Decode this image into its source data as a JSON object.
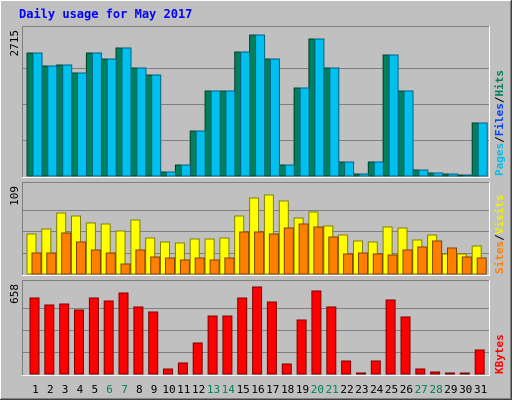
{
  "chart_data": [
    {
      "type": "bar",
      "title": "Daily usage for May 2017",
      "y_tick_label": "2715",
      "ylim": [
        0,
        2715
      ],
      "legend": [
        {
          "label": "Pages",
          "color": "#00c0f0"
        },
        {
          "label": "Files",
          "color": "#0040ff"
        },
        {
          "label": "Hits",
          "color": "#00805c"
        }
      ],
      "legend_separator": "/",
      "categories": [
        "1",
        "2",
        "3",
        "4",
        "5",
        "6",
        "7",
        "8",
        "9",
        "10",
        "11",
        "12",
        "13",
        "14",
        "15",
        "16",
        "17",
        "18",
        "19",
        "20",
        "21",
        "22",
        "23",
        "24",
        "25",
        "26",
        "27",
        "28",
        "29",
        "30",
        "31"
      ],
      "series": [
        {
          "name": "Hits",
          "color": "#00805c",
          "values": [
            2320,
            2070,
            2090,
            1940,
            2320,
            2200,
            2420,
            2040,
            1900,
            80,
            210,
            850,
            1600,
            1600,
            2330,
            2665,
            2200,
            200,
            1660,
            2580,
            2040,
            270,
            30,
            270,
            2280,
            1600,
            120,
            60,
            40,
            10,
            1000
          ]
        },
        {
          "name": "Pages",
          "color": "#00c0f0",
          "values": [
            2320,
            2070,
            2090,
            1940,
            2320,
            2200,
            2420,
            2040,
            1900,
            80,
            210,
            850,
            1600,
            1600,
            2330,
            2665,
            2200,
            200,
            1660,
            2580,
            2040,
            270,
            30,
            270,
            2280,
            1600,
            120,
            60,
            40,
            10,
            1000
          ]
        }
      ]
    },
    {
      "type": "bar",
      "y_tick_label": "109",
      "ylim": [
        0,
        109
      ],
      "legend": [
        {
          "label": "Sites",
          "color": "#ff8000"
        },
        {
          "label": "Visits",
          "color": "#f0f000"
        }
      ],
      "legend_separator": "/",
      "categories": [
        "1",
        "2",
        "3",
        "4",
        "5",
        "6",
        "7",
        "8",
        "9",
        "10",
        "11",
        "12",
        "13",
        "14",
        "15",
        "16",
        "17",
        "18",
        "19",
        "20",
        "21",
        "22",
        "23",
        "24",
        "25",
        "26",
        "27",
        "28",
        "29",
        "30",
        "31"
      ],
      "series": [
        {
          "name": "Visits",
          "color": "#ffff00",
          "values": [
            51,
            57,
            77,
            73,
            65,
            63,
            54,
            69,
            45,
            40,
            39,
            44,
            44,
            45,
            74,
            96,
            100,
            93,
            71,
            78,
            61,
            50,
            42,
            41,
            60,
            58,
            43,
            50,
            25,
            25,
            35
          ]
        },
        {
          "name": "Sites",
          "color": "#ff8000",
          "values": [
            26,
            26,
            52,
            41,
            30,
            27,
            13,
            31,
            21,
            20,
            18,
            20,
            18,
            20,
            53,
            53,
            51,
            58,
            64,
            60,
            47,
            25,
            26,
            25,
            24,
            30,
            34,
            42,
            33,
            21,
            20
          ]
        }
      ]
    },
    {
      "type": "bar",
      "y_tick_label": "658",
      "ylim": [
        0,
        658
      ],
      "legend": [
        {
          "label": "KBytes",
          "color": "#ff0000"
        }
      ],
      "categories": [
        "1",
        "2",
        "3",
        "4",
        "5",
        "6",
        "7",
        "8",
        "9",
        "10",
        "11",
        "12",
        "13",
        "14",
        "15",
        "16",
        "17",
        "18",
        "19",
        "20",
        "21",
        "22",
        "23",
        "24",
        "25",
        "26",
        "27",
        "28",
        "29",
        "30",
        "31"
      ],
      "series": [
        {
          "name": "KBytes",
          "color": "#ff0000",
          "values": [
            572,
            513,
            522,
            478,
            572,
            548,
            604,
            502,
            463,
            40,
            83,
            235,
            435,
            435,
            568,
            653,
            540,
            78,
            402,
            617,
            501,
            100,
            10,
            95,
            557,
            425,
            40,
            15,
            10,
            5,
            182
          ]
        }
      ]
    }
  ],
  "x_labels": [
    {
      "label": "1",
      "weekend": false
    },
    {
      "label": "2",
      "weekend": false
    },
    {
      "label": "3",
      "weekend": false
    },
    {
      "label": "4",
      "weekend": false
    },
    {
      "label": "5",
      "weekend": false
    },
    {
      "label": "6",
      "weekend": true
    },
    {
      "label": "7",
      "weekend": true
    },
    {
      "label": "8",
      "weekend": false
    },
    {
      "label": "9",
      "weekend": false
    },
    {
      "label": "10",
      "weekend": false
    },
    {
      "label": "11",
      "weekend": false
    },
    {
      "label": "12",
      "weekend": false
    },
    {
      "label": "13",
      "weekend": true
    },
    {
      "label": "14",
      "weekend": true
    },
    {
      "label": "15",
      "weekend": false
    },
    {
      "label": "16",
      "weekend": false
    },
    {
      "label": "17",
      "weekend": false
    },
    {
      "label": "18",
      "weekend": false
    },
    {
      "label": "19",
      "weekend": false
    },
    {
      "label": "20",
      "weekend": true
    },
    {
      "label": "21",
      "weekend": true
    },
    {
      "label": "22",
      "weekend": false
    },
    {
      "label": "23",
      "weekend": false
    },
    {
      "label": "24",
      "weekend": false
    },
    {
      "label": "25",
      "weekend": false
    },
    {
      "label": "26",
      "weekend": false
    },
    {
      "label": "27",
      "weekend": true
    },
    {
      "label": "28",
      "weekend": true
    },
    {
      "label": "29",
      "weekend": false
    },
    {
      "label": "30",
      "weekend": false
    },
    {
      "label": "31",
      "weekend": false
    }
  ],
  "colors": {
    "background": "#c0c0c0",
    "title": "#0000ff",
    "weekday_label": "#000000",
    "weekend_label": "#00805c",
    "grid": "#808080"
  }
}
